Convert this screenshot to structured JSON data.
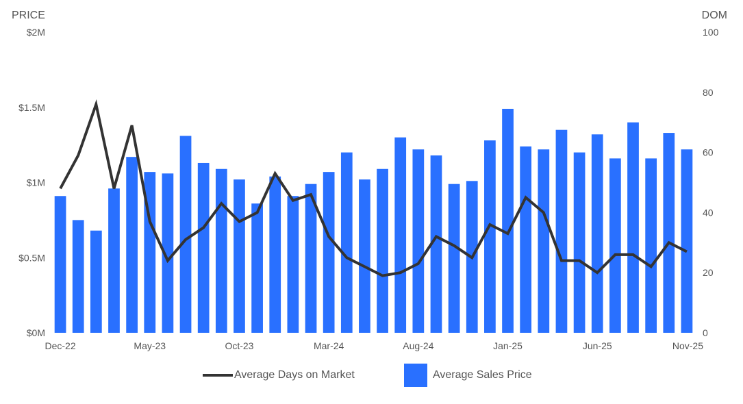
{
  "chart_data": {
    "type": "bar",
    "left_axis_title": "PRICE",
    "right_axis_title": "DOM",
    "left_ticks": [
      "$0M",
      "$0.5M",
      "$1M",
      "$1.5M",
      "$2M"
    ],
    "right_ticks": [
      "0",
      "20",
      "40",
      "60",
      "80",
      "100"
    ],
    "left_ylim": [
      0,
      2000000
    ],
    "right_ylim": [
      0,
      100
    ],
    "x_tick_labels": [
      "Dec-22",
      "May-23",
      "Oct-23",
      "Mar-24",
      "Aug-24",
      "Jan-25",
      "Jun-25",
      "Nov-25"
    ],
    "categories": [
      "Dec-22",
      "Jan-23",
      "Feb-23",
      "Mar-23",
      "Apr-23",
      "May-23",
      "Jun-23",
      "Jul-23",
      "Aug-23",
      "Sep-23",
      "Oct-23",
      "Nov-23",
      "Dec-23",
      "Jan-24",
      "Feb-24",
      "Mar-24",
      "Apr-24",
      "May-24",
      "Jun-24",
      "Jul-24",
      "Aug-24",
      "Sep-24",
      "Oct-24",
      "Nov-24",
      "Dec-24",
      "Jan-25",
      "Feb-25",
      "Mar-25",
      "Apr-25",
      "May-25",
      "Jun-25",
      "Jul-25",
      "Aug-25",
      "Sep-25",
      "Oct-25",
      "Nov-25"
    ],
    "series": [
      {
        "name": "Average Sales Price",
        "kind": "bar",
        "axis": "left",
        "color": "#2970ff",
        "values": [
          910000,
          750000,
          680000,
          960000,
          1170000,
          1070000,
          1060000,
          1310000,
          1130000,
          1090000,
          1020000,
          860000,
          1040000,
          910000,
          990000,
          1070000,
          1200000,
          1020000,
          1090000,
          1300000,
          1220000,
          1180000,
          990000,
          1010000,
          1280000,
          1490000,
          1240000,
          1220000,
          1350000,
          1200000,
          1320000,
          1160000,
          1400000,
          1160000,
          1330000,
          1220000
        ]
      },
      {
        "name": "Average Days on Market",
        "kind": "line",
        "axis": "right",
        "color": "#333333",
        "values": [
          48,
          59,
          76,
          48,
          69,
          37,
          24,
          31,
          35,
          43,
          37,
          40,
          53,
          44,
          46,
          32,
          25,
          22,
          19,
          20,
          23,
          32,
          29,
          25,
          36,
          33,
          45,
          40,
          24,
          24,
          20,
          26,
          26,
          22,
          30,
          27
        ]
      }
    ],
    "grid": false,
    "legend_position": "bottom"
  },
  "legend": {
    "line_label": "Average Days on Market",
    "bar_label": "Average Sales Price"
  }
}
